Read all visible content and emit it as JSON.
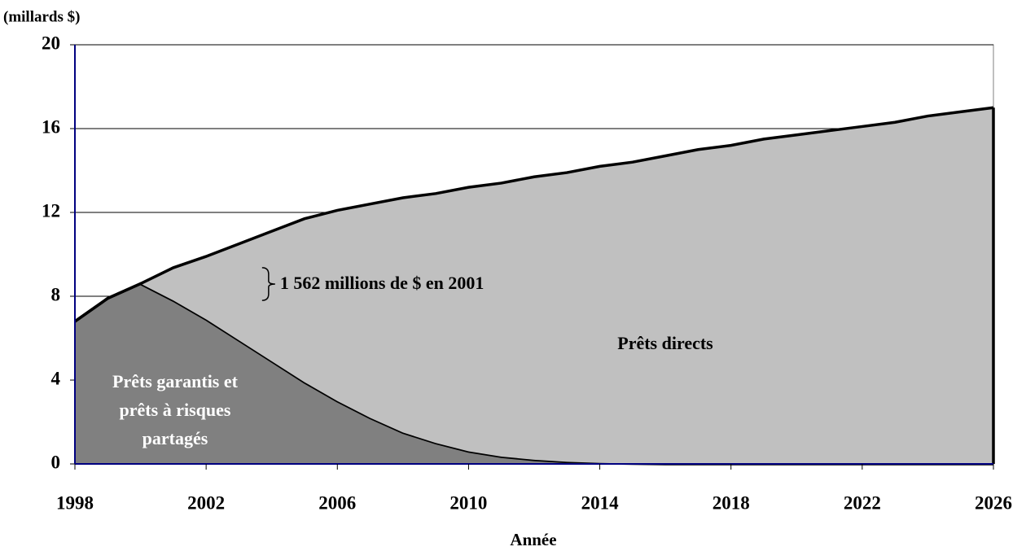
{
  "chart_data": {
    "type": "stacked_area",
    "y_label": "(millards $)",
    "x_label": "Année",
    "annotation": "1 562 millions de $ en 2001",
    "x": [
      1998,
      1999,
      2000,
      2001,
      2002,
      2003,
      2004,
      2005,
      2006,
      2007,
      2008,
      2009,
      2010,
      2011,
      2012,
      2013,
      2014,
      2015,
      2016,
      2017,
      2018,
      2019,
      2020,
      2021,
      2022,
      2023,
      2024,
      2025,
      2026
    ],
    "series": [
      {
        "name": "Prêts garantis et prêts à risques partagés",
        "color": "#808080",
        "values": [
          6.8,
          7.9,
          8.6,
          7.8,
          6.9,
          5.9,
          4.9,
          3.9,
          3.0,
          2.2,
          1.5,
          1.0,
          0.6,
          0.35,
          0.2,
          0.1,
          0.05,
          0.02,
          0,
          0,
          0,
          0,
          0,
          0,
          0,
          0,
          0,
          0,
          0
        ]
      },
      {
        "name": "Prêts directs",
        "color": "#c0c0c0",
        "values": [
          0,
          0,
          0,
          1.562,
          3.0,
          4.6,
          6.2,
          7.8,
          9.1,
          10.2,
          11.2,
          11.9,
          12.6,
          13.05,
          13.5,
          13.8,
          14.15,
          14.38,
          14.7,
          15.0,
          15.2,
          15.5,
          15.7,
          15.9,
          16.1,
          16.3,
          16.6,
          16.8,
          17.0
        ]
      }
    ],
    "xlim": [
      1998,
      2026
    ],
    "xticks": [
      1998,
      2002,
      2006,
      2010,
      2014,
      2018,
      2022,
      2026
    ],
    "ylim": [
      0,
      20
    ],
    "yticks": [
      0,
      4,
      8,
      12,
      16,
      20
    ],
    "grid": true
  }
}
